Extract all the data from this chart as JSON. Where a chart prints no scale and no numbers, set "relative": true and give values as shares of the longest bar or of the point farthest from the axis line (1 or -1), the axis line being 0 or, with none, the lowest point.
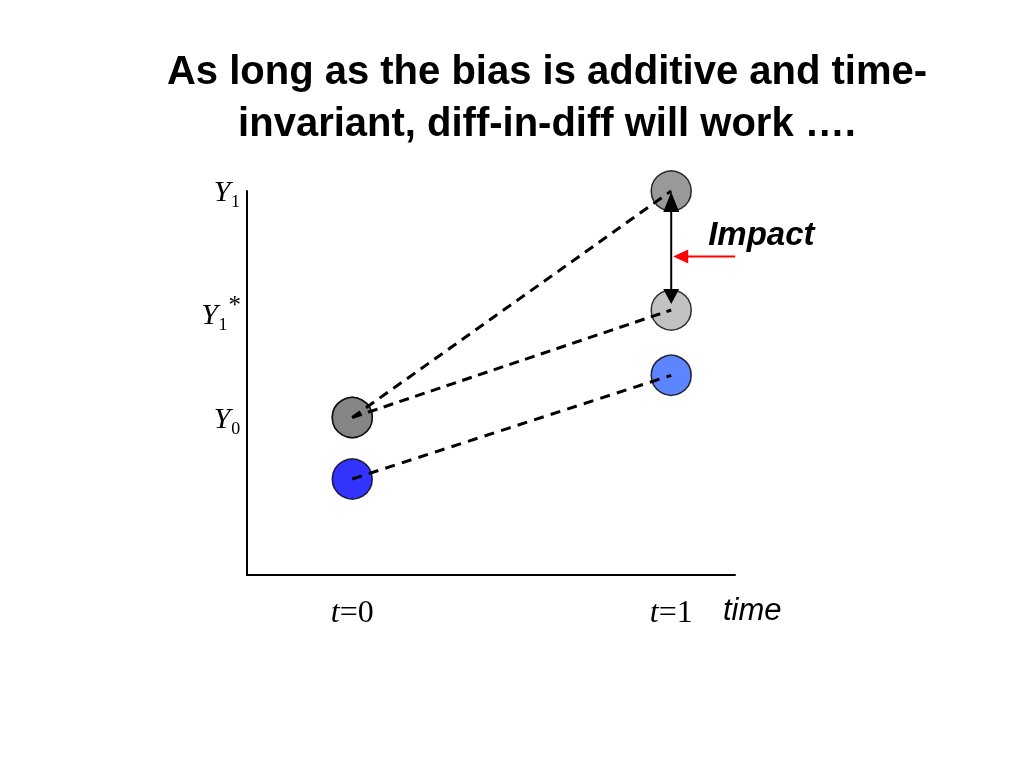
{
  "chart_data": {
    "type": "line",
    "title": "As long as the bias is additive and time-invariant, diff-in-diff will work ….",
    "xlabel": "time",
    "relative": true,
    "x": [
      0,
      1
    ],
    "xlim": [
      -0.33,
      1.2
    ],
    "xticks": [
      {
        "value": 0,
        "label": "t=0"
      },
      {
        "value": 1,
        "label": "t=1"
      }
    ],
    "line_style": "dashed",
    "marker": "circle",
    "grid": false,
    "series": [
      {
        "color": "#000000",
        "colors": [
          "#808080",
          "#808080"
        ],
        "values": [
          0.41,
          1
        ]
      },
      {
        "color": "#000000",
        "colors": [
          "#808080",
          "#b3b3b3"
        ],
        "values": [
          0.41,
          0.69
        ]
      },
      {
        "color": "#000000",
        "colors": [
          "#0000ff",
          "#3366ff"
        ],
        "values": [
          0.25,
          0.52
        ]
      }
    ],
    "annotations": [
      {
        "text": "Impact",
        "x": 1,
        "y": 1
      },
      "Y₁",
      "Y₁$^{*}$",
      "Y₀"
    ]
  }
}
